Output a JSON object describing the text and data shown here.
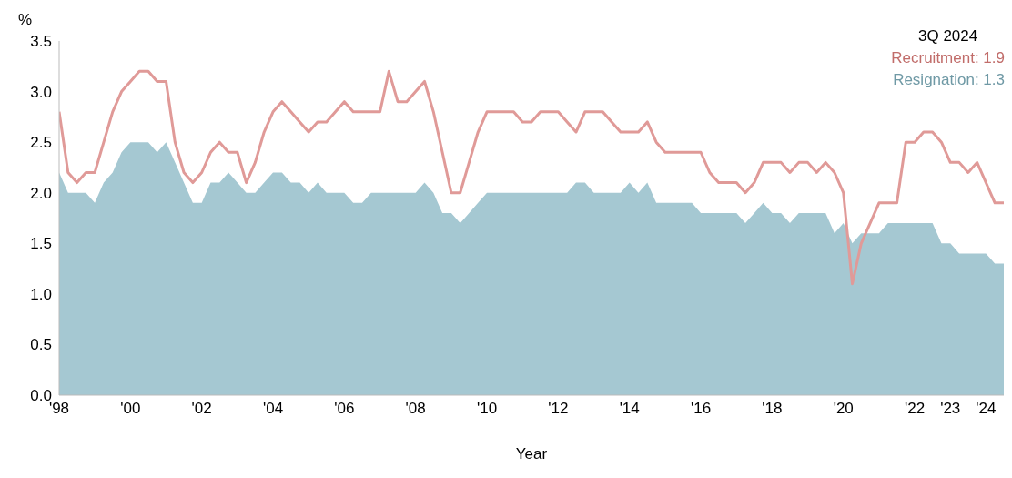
{
  "chart_data": {
    "type": "area",
    "xlabel": "Year",
    "ylabel": "%",
    "legend_title": "3Q 2024",
    "legend": "top right",
    "grid": false,
    "x": [
      1998,
      1998.25,
      1998.5,
      1998.75,
      1999,
      1999.25,
      1999.5,
      1999.75,
      2000,
      2000.25,
      2000.5,
      2000.75,
      2001,
      2001.25,
      2001.5,
      2001.75,
      2002,
      2002.25,
      2002.5,
      2002.75,
      2003,
      2003.25,
      2003.5,
      2003.75,
      2004,
      2004.25,
      2004.5,
      2004.75,
      2005,
      2005.25,
      2005.5,
      2005.75,
      2006,
      2006.25,
      2006.5,
      2006.75,
      2007,
      2007.25,
      2007.5,
      2007.75,
      2008,
      2008.25,
      2008.5,
      2008.75,
      2009,
      2009.25,
      2009.5,
      2009.75,
      2010,
      2010.25,
      2010.5,
      2010.75,
      2011,
      2011.25,
      2011.5,
      2011.75,
      2012,
      2012.25,
      2012.5,
      2012.75,
      2013,
      2013.25,
      2013.5,
      2013.75,
      2014,
      2014.25,
      2014.5,
      2014.75,
      2015,
      2015.25,
      2015.5,
      2015.75,
      2016,
      2016.25,
      2016.5,
      2016.75,
      2017,
      2017.25,
      2017.5,
      2017.75,
      2018,
      2018.25,
      2018.5,
      2018.75,
      2019,
      2019.25,
      2019.5,
      2019.75,
      2020,
      2020.25,
      2020.5,
      2020.75,
      2021,
      2021.25,
      2021.5,
      2021.75,
      2022,
      2022.25,
      2022.5,
      2022.75,
      2023,
      2023.25,
      2023.5,
      2023.75,
      2024,
      2024.25,
      2024.5
    ],
    "series": [
      {
        "name": "Resignation: 1.3",
        "color": "#a5c8d2",
        "values": [
          2.2,
          2.0,
          2.0,
          2.0,
          1.9,
          2.1,
          2.2,
          2.4,
          2.5,
          2.5,
          2.5,
          2.4,
          2.5,
          2.3,
          2.1,
          1.9,
          1.9,
          2.1,
          2.1,
          2.2,
          2.1,
          2.0,
          2.0,
          2.1,
          2.2,
          2.2,
          2.1,
          2.1,
          2.0,
          2.1,
          2.0,
          2.0,
          2.0,
          1.9,
          1.9,
          2.0,
          2.0,
          2.0,
          2.0,
          2.0,
          2.0,
          2.1,
          2.0,
          1.8,
          1.8,
          1.7,
          1.8,
          1.9,
          2.0,
          2.0,
          2.0,
          2.0,
          2.0,
          2.0,
          2.0,
          2.0,
          2.0,
          2.0,
          2.1,
          2.1,
          2.0,
          2.0,
          2.0,
          2.0,
          2.1,
          2.0,
          2.1,
          1.9,
          1.9,
          1.9,
          1.9,
          1.9,
          1.8,
          1.8,
          1.8,
          1.8,
          1.8,
          1.7,
          1.8,
          1.9,
          1.8,
          1.8,
          1.7,
          1.8,
          1.8,
          1.8,
          1.8,
          1.6,
          1.7,
          1.5,
          1.6,
          1.6,
          1.6,
          1.7,
          1.7,
          1.7,
          1.7,
          1.7,
          1.7,
          1.5,
          1.5,
          1.4,
          1.4,
          1.4,
          1.4,
          1.3,
          1.3
        ]
      },
      {
        "name": "Recruitment: 1.9",
        "type": "line",
        "color": "#e09a98",
        "values": [
          2.8,
          2.2,
          2.1,
          2.2,
          2.2,
          2.5,
          2.8,
          3.0,
          3.1,
          3.2,
          3.2,
          3.1,
          3.1,
          2.5,
          2.2,
          2.1,
          2.2,
          2.4,
          2.5,
          2.4,
          2.4,
          2.1,
          2.3,
          2.6,
          2.8,
          2.9,
          2.8,
          2.7,
          2.6,
          2.7,
          2.7,
          2.8,
          2.9,
          2.8,
          2.8,
          2.8,
          2.8,
          3.2,
          2.9,
          2.9,
          3.0,
          3.1,
          2.8,
          2.4,
          2.0,
          2.0,
          2.3,
          2.6,
          2.8,
          2.8,
          2.8,
          2.8,
          2.7,
          2.7,
          2.8,
          2.8,
          2.8,
          2.7,
          2.6,
          2.8,
          2.8,
          2.8,
          2.7,
          2.6,
          2.6,
          2.6,
          2.7,
          2.5,
          2.4,
          2.4,
          2.4,
          2.4,
          2.4,
          2.2,
          2.1,
          2.1,
          2.1,
          2.0,
          2.1,
          2.3,
          2.3,
          2.3,
          2.2,
          2.3,
          2.3,
          2.2,
          2.3,
          2.2,
          2.0,
          1.1,
          1.5,
          1.7,
          1.9,
          1.9,
          1.9,
          2.5,
          2.5,
          2.6,
          2.6,
          2.5,
          2.3,
          2.3,
          2.2,
          2.3,
          2.1,
          1.9,
          1.9
        ]
      }
    ],
    "xlim": [
      1998,
      2024.5
    ],
    "xticks": [
      {
        "value": 1998,
        "label": "'98"
      },
      {
        "value": 2000,
        "label": "'00"
      },
      {
        "value": 2002,
        "label": "'02"
      },
      {
        "value": 2004,
        "label": "'04"
      },
      {
        "value": 2006,
        "label": "'06"
      },
      {
        "value": 2008,
        "label": "'08"
      },
      {
        "value": 2010,
        "label": "'10"
      },
      {
        "value": 2012,
        "label": "'12"
      },
      {
        "value": 2014,
        "label": "'14"
      },
      {
        "value": 2016,
        "label": "'16"
      },
      {
        "value": 2018,
        "label": "'18"
      },
      {
        "value": 2020,
        "label": "'20"
      },
      {
        "value": 2022,
        "label": "'22"
      },
      {
        "value": 2023,
        "label": "'23"
      },
      {
        "value": 2024,
        "label": "'24"
      }
    ],
    "ylim": [
      0,
      3.5
    ],
    "yticks": [
      {
        "value": 0,
        "label": "0.0"
      },
      {
        "value": 0.5,
        "label": "0.5"
      },
      {
        "value": 1,
        "label": "1.0"
      },
      {
        "value": 1.5,
        "label": "1.5"
      },
      {
        "value": 2,
        "label": "2.0"
      },
      {
        "value": 2.5,
        "label": "2.5"
      },
      {
        "value": 3,
        "label": "3.0"
      },
      {
        "value": 3.5,
        "label": "3.5"
      }
    ]
  }
}
